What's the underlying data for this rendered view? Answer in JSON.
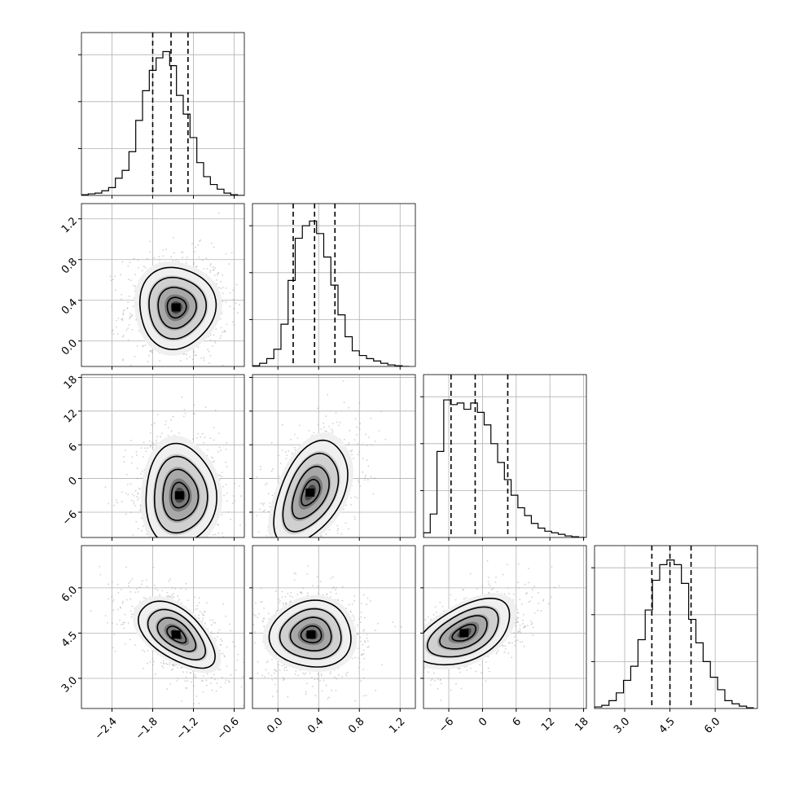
{
  "chart_data": {
    "type": "corner",
    "parameters": [
      {
        "id": "p0",
        "range": [
          -2.85,
          -0.45
        ],
        "ticks": [
          "−2.4",
          "−1.8",
          "−1.2",
          "−0.6"
        ],
        "tick_values": [
          -2.4,
          -1.8,
          -1.2,
          -0.6
        ],
        "quantiles": [
          -1.8,
          -1.53,
          -1.28
        ],
        "hist_bins": [
          -2.85,
          -2.75,
          -2.65,
          -2.55,
          -2.45,
          -2.35,
          -2.25,
          -2.15,
          -2.05,
          -1.95,
          -1.85,
          -1.75,
          -1.65,
          -1.55,
          -1.45,
          -1.35,
          -1.25,
          -1.15,
          -1.05,
          -0.95,
          -0.85,
          -0.75,
          -0.65,
          -0.55,
          -0.45
        ],
        "hist_values": [
          0.005,
          0.01,
          0.015,
          0.03,
          0.05,
          0.11,
          0.16,
          0.28,
          0.48,
          0.67,
          0.8,
          0.88,
          0.92,
          0.83,
          0.64,
          0.52,
          0.37,
          0.21,
          0.12,
          0.07,
          0.04,
          0.015,
          0.005,
          0.0
        ]
      },
      {
        "id": "p1",
        "range": [
          -0.25,
          1.35
        ],
        "ticks": [
          "0.0",
          "0.4",
          "0.8",
          "1.2"
        ],
        "tick_values": [
          0.0,
          0.4,
          0.8,
          1.2
        ],
        "quantiles": [
          0.15,
          0.36,
          0.56
        ],
        "hist_bins": [
          -0.25,
          -0.18,
          -0.11,
          -0.04,
          0.03,
          0.1,
          0.17,
          0.24,
          0.31,
          0.38,
          0.45,
          0.52,
          0.59,
          0.66,
          0.73,
          0.8,
          0.87,
          0.94,
          1.01,
          1.08,
          1.15,
          1.22,
          1.29
        ],
        "hist_values": [
          0.005,
          0.02,
          0.05,
          0.11,
          0.27,
          0.55,
          0.82,
          0.9,
          0.93,
          0.85,
          0.7,
          0.52,
          0.33,
          0.19,
          0.1,
          0.07,
          0.05,
          0.035,
          0.02,
          0.01,
          0.005,
          0.0
        ]
      },
      {
        "id": "p2",
        "range": [
          -10.5,
          18.5
        ],
        "ticks": [
          "−6",
          "0",
          "6",
          "12",
          "18"
        ],
        "tick_values": [
          -6,
          0,
          6,
          12,
          18
        ],
        "quantiles": [
          -5.6,
          -1.3,
          4.5
        ],
        "hist_bins": [
          -10.5,
          -9.3,
          -8.1,
          -6.9,
          -5.7,
          -4.5,
          -3.3,
          -2.1,
          -0.9,
          0.3,
          1.5,
          2.7,
          3.9,
          5.1,
          6.3,
          7.5,
          8.7,
          9.9,
          11.1,
          12.3,
          13.5,
          14.7,
          15.9,
          17.1,
          18.3
        ],
        "hist_values": [
          0.03,
          0.15,
          0.55,
          0.88,
          0.85,
          0.86,
          0.82,
          0.86,
          0.8,
          0.72,
          0.6,
          0.48,
          0.37,
          0.27,
          0.19,
          0.14,
          0.09,
          0.06,
          0.04,
          0.03,
          0.02,
          0.01,
          0.005,
          0.0
        ]
      },
      {
        "id": "p3",
        "range": [
          2.0,
          7.4
        ],
        "ticks": [
          "3.0",
          "4.5",
          "6.0"
        ],
        "tick_values": [
          3.0,
          4.5,
          6.0
        ],
        "quantiles": [
          3.9,
          4.5,
          5.2
        ],
        "hist_bins": [
          2.0,
          2.24,
          2.48,
          2.72,
          2.96,
          3.2,
          3.44,
          3.68,
          3.92,
          4.16,
          4.4,
          4.64,
          4.88,
          5.12,
          5.36,
          5.6,
          5.84,
          6.08,
          6.32,
          6.56,
          6.8,
          7.04,
          7.28
        ],
        "hist_values": [
          0.01,
          0.02,
          0.05,
          0.1,
          0.18,
          0.27,
          0.44,
          0.63,
          0.82,
          0.92,
          0.95,
          0.92,
          0.8,
          0.57,
          0.42,
          0.3,
          0.2,
          0.12,
          0.05,
          0.03,
          0.015,
          0.005
        ]
      }
    ],
    "pairs": [
      {
        "row": 1,
        "col": 0,
        "cx": -1.45,
        "cy": 0.33,
        "sx": 0.28,
        "sy": 0.2,
        "rho": 0.0
      },
      {
        "row": 2,
        "col": 0,
        "cx": -1.4,
        "cy": -3.0,
        "sx": 0.26,
        "sy": 4.5,
        "rho": 0.0
      },
      {
        "row": 2,
        "col": 1,
        "cx": 0.32,
        "cy": -2.5,
        "sx": 0.18,
        "sy": 4.6,
        "rho": 0.45
      },
      {
        "row": 3,
        "col": 0,
        "cx": -1.45,
        "cy": 4.45,
        "sx": 0.28,
        "sy": 0.55,
        "rho": -0.55
      },
      {
        "row": 3,
        "col": 1,
        "cx": 0.33,
        "cy": 4.45,
        "sx": 0.2,
        "sy": 0.55,
        "rho": 0.0
      },
      {
        "row": 3,
        "col": 2,
        "cx": -3.2,
        "cy": 4.5,
        "sx": 4.2,
        "sy": 0.55,
        "rho": 0.5
      }
    ],
    "grid": true,
    "contour_levels_sigma": [
      0.5,
      1.0,
      1.5,
      2.0
    ]
  }
}
